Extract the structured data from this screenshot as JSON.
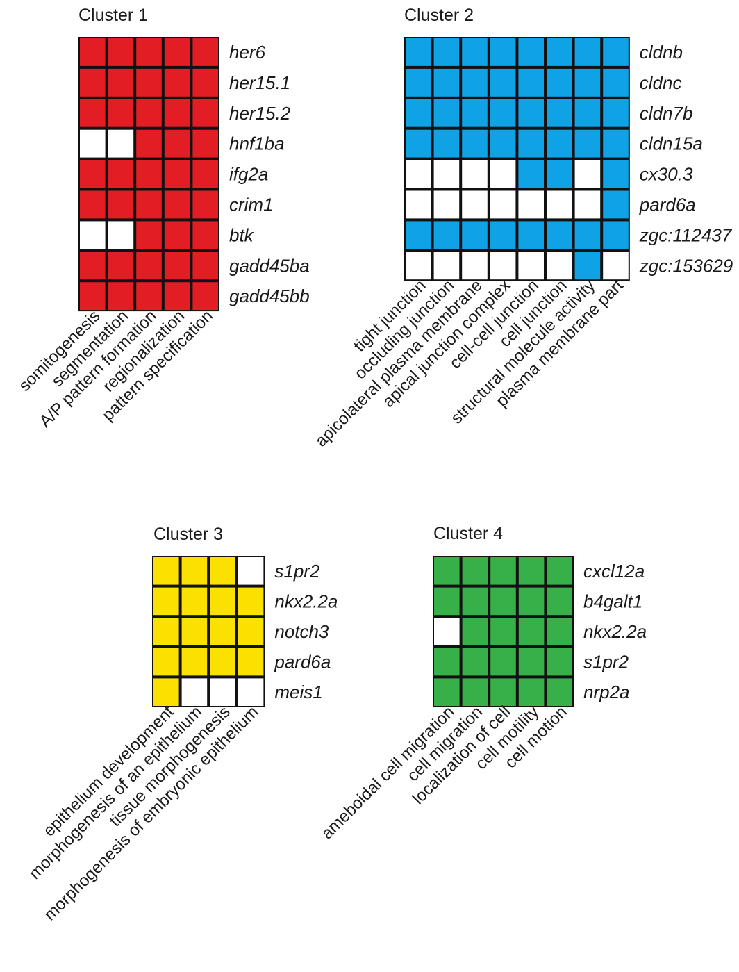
{
  "chart_data": [
    {
      "type": "heatmap",
      "title": "Cluster 1",
      "color": "#e31d24",
      "rows": [
        "her6",
        "her15.1",
        "her15.2",
        "hnf1ba",
        "ifg2a",
        "crim1",
        "btk",
        "gadd45ba",
        "gadd45bb"
      ],
      "columns": [
        "somitogenesis",
        "segmentation",
        "A/P pattern formation",
        "regionalization",
        "pattern specification"
      ],
      "matrix": [
        [
          1,
          1,
          1,
          1,
          1
        ],
        [
          1,
          1,
          1,
          1,
          1
        ],
        [
          1,
          1,
          1,
          1,
          1
        ],
        [
          0,
          0,
          1,
          1,
          1
        ],
        [
          1,
          1,
          1,
          1,
          1
        ],
        [
          1,
          1,
          1,
          1,
          1
        ],
        [
          0,
          0,
          1,
          1,
          1
        ],
        [
          1,
          1,
          1,
          1,
          1
        ],
        [
          1,
          1,
          1,
          1,
          1
        ]
      ]
    },
    {
      "type": "heatmap",
      "title": "Cluster 2",
      "color": "#0fa3e6",
      "rows": [
        "cldnb",
        "cldnc",
        "cldn7b",
        "cldn15a",
        "cx30.3",
        "pard6a",
        "zgc:112437",
        "zgc:153629"
      ],
      "columns": [
        "tight junction",
        "occluding junction",
        "apicolateral plasma membrane",
        "apical junction complex",
        "cell-cell junction",
        "cell junction",
        "structural molecule activity",
        "plasma membrane part"
      ],
      "matrix": [
        [
          1,
          1,
          1,
          1,
          1,
          1,
          1,
          1
        ],
        [
          1,
          1,
          1,
          1,
          1,
          1,
          1,
          1
        ],
        [
          1,
          1,
          1,
          1,
          1,
          1,
          1,
          1
        ],
        [
          1,
          1,
          1,
          1,
          1,
          1,
          1,
          1
        ],
        [
          0,
          0,
          0,
          0,
          1,
          1,
          0,
          1
        ],
        [
          0,
          0,
          0,
          0,
          0,
          0,
          0,
          1
        ],
        [
          1,
          1,
          1,
          1,
          1,
          1,
          1,
          1
        ],
        [
          0,
          0,
          0,
          0,
          0,
          0,
          1,
          0
        ]
      ]
    },
    {
      "type": "heatmap",
      "title": "Cluster 3",
      "color": "#fbe100",
      "rows": [
        "s1pr2",
        "nkx2.2a",
        "notch3",
        "pard6a",
        "meis1"
      ],
      "columns": [
        "epithelium development",
        "morphogenesis of an epithelium",
        "tissue morphogenesis",
        "morphogenesis of embryonic epithelium"
      ],
      "matrix": [
        [
          1,
          1,
          1,
          0
        ],
        [
          1,
          1,
          1,
          1
        ],
        [
          1,
          1,
          1,
          1
        ],
        [
          1,
          1,
          1,
          1
        ],
        [
          1,
          0,
          0,
          0
        ]
      ]
    },
    {
      "type": "heatmap",
      "title": "Cluster 4",
      "color": "#38b04a",
      "rows": [
        "cxcl12a",
        "b4galt1",
        "nkx2.2a",
        "s1pr2",
        "nrp2a"
      ],
      "columns": [
        "ameboidal cell migration",
        "cell migration",
        "localization of cell",
        "cell motility",
        "cell motion"
      ],
      "matrix": [
        [
          1,
          1,
          1,
          1,
          1
        ],
        [
          1,
          1,
          1,
          1,
          1
        ],
        [
          0,
          1,
          1,
          1,
          1
        ],
        [
          1,
          1,
          1,
          1,
          1
        ],
        [
          1,
          1,
          1,
          1,
          1
        ]
      ]
    }
  ]
}
